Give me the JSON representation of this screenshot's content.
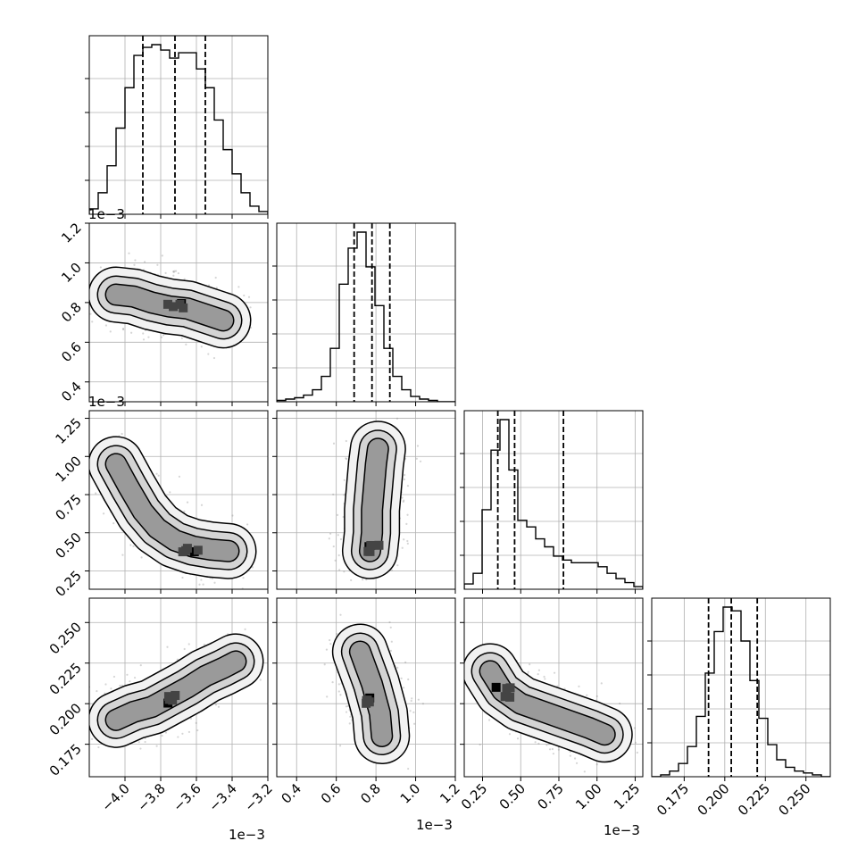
{
  "figure": {
    "offset_texts": [
      "1e−3",
      "1e−3",
      "1e−3",
      "1e−3",
      "1e−3"
    ]
  },
  "chart_data": {
    "type": "corner",
    "grid": true,
    "parameters": [
      {
        "range": [
          -0.0042,
          -0.0032
        ],
        "ticks": [
          -0.004,
          -0.0038,
          -0.0036,
          -0.0034,
          -0.0032
        ],
        "tick_labels": [
          "−4.0",
          "−3.8",
          "−3.6",
          "−3.4",
          "−3.2"
        ],
        "offset": "1e−3",
        "quantiles": [
          -0.0039,
          -0.00372,
          -0.00355
        ]
      },
      {
        "range": [
          0.0003,
          0.0012
        ],
        "ticks": [
          0.0004,
          0.0006,
          0.0008,
          0.001,
          0.0012
        ],
        "tick_labels": [
          "0.4",
          "0.6",
          "0.8",
          "1.0",
          "1.2"
        ],
        "offset": "1e−3",
        "quantiles": [
          0.00069,
          0.00078,
          0.00087
        ]
      },
      {
        "range": [
          0.00013,
          0.0013
        ],
        "ticks": [
          0.00025,
          0.0005,
          0.00075,
          0.001,
          0.00125
        ],
        "tick_labels": [
          "0.25",
          "0.50",
          "0.75",
          "1.00",
          "1.25"
        ],
        "offset": "1e−3",
        "quantiles": [
          0.00035,
          0.00046,
          0.00078
        ]
      },
      {
        "range": [
          0.155,
          0.265
        ],
        "ticks": [
          0.175,
          0.2,
          0.225,
          0.25
        ],
        "tick_labels": [
          "0.175",
          "0.200",
          "0.225",
          "0.250"
        ],
        "offset": "",
        "quantiles": [
          0.19,
          0.204,
          0.22
        ]
      }
    ],
    "histograms": [
      {
        "param": 0,
        "bins": 20,
        "counts": [
          2,
          8,
          18,
          32,
          47,
          59,
          62,
          63,
          61,
          58,
          60,
          60,
          54,
          47,
          35,
          24,
          15,
          8,
          3,
          1
        ]
      },
      {
        "param": 1,
        "bins": 20,
        "counts": [
          1,
          2,
          3,
          5,
          9,
          19,
          40,
          88,
          115,
          127,
          101,
          72,
          40,
          19,
          9,
          4,
          2,
          1,
          0,
          0
        ]
      },
      {
        "param": 2,
        "bins": 20,
        "counts": [
          4,
          12,
          60,
          105,
          128,
          90,
          52,
          47,
          38,
          32,
          25,
          22,
          20,
          20,
          20,
          17,
          12,
          8,
          5,
          2
        ]
      },
      {
        "param": 3,
        "bins": 20,
        "counts": [
          0,
          1,
          3,
          7,
          16,
          32,
          55,
          77,
          90,
          88,
          72,
          51,
          31,
          17,
          9,
          5,
          3,
          2,
          1,
          0
        ]
      }
    ],
    "density_panels": [
      {
        "x_param": 0,
        "y_param": 1,
        "ridge": [
          [
            -4.05,
            0.84
          ],
          [
            -3.95,
            0.83
          ],
          [
            -3.85,
            0.8
          ],
          [
            -3.75,
            0.78
          ],
          [
            -3.65,
            0.77
          ],
          [
            -3.55,
            0.74
          ],
          [
            -3.45,
            0.71
          ]
        ],
        "spread": [
          0.7,
          0.55,
          0.3
        ],
        "peak_center": [
          -3.72,
          0.78
        ]
      },
      {
        "x_param": 0,
        "y_param": 2,
        "ridge": [
          [
            -4.05,
            0.95
          ],
          [
            -3.98,
            0.8
          ],
          [
            -3.9,
            0.64
          ],
          [
            -3.82,
            0.53
          ],
          [
            -3.72,
            0.45
          ],
          [
            -3.62,
            0.41
          ],
          [
            -3.52,
            0.39
          ],
          [
            -3.42,
            0.38
          ]
        ],
        "spread": [
          1.0,
          0.9,
          0.9
        ],
        "peak_center": [
          -3.63,
          0.41
        ]
      },
      {
        "x_param": 0,
        "y_param": 3,
        "ridge": [
          [
            -4.05,
            0.19
          ],
          [
            -3.95,
            0.195
          ],
          [
            -3.85,
            0.198
          ],
          [
            -3.75,
            0.204
          ],
          [
            -3.65,
            0.21
          ],
          [
            -3.55,
            0.217
          ],
          [
            -3.45,
            0.222
          ],
          [
            -3.38,
            0.226
          ]
        ],
        "spread": [
          0.8,
          0.7,
          0.6
        ],
        "peak_center": [
          -3.76,
          0.202
        ]
      },
      {
        "x_param": 1,
        "y_param": 2,
        "ridge": [
          [
            0.77,
            0.38
          ],
          [
            0.78,
            0.5
          ],
          [
            0.78,
            0.65
          ],
          [
            0.79,
            0.8
          ],
          [
            0.8,
            0.95
          ],
          [
            0.81,
            1.05
          ]
        ],
        "spread": [
          0.6,
          0.9,
          1.3
        ],
        "peak_center": [
          0.78,
          0.41
        ]
      },
      {
        "x_param": 1,
        "y_param": 3,
        "ridge": [
          [
            0.72,
            0.232
          ],
          [
            0.75,
            0.222
          ],
          [
            0.78,
            0.212
          ],
          [
            0.8,
            0.203
          ],
          [
            0.82,
            0.194
          ],
          [
            0.83,
            0.18
          ]
        ],
        "spread": [
          0.5,
          0.9,
          1.1
        ],
        "peak_center": [
          0.8,
          0.202
        ]
      },
      {
        "x_param": 2,
        "y_param": 3,
        "ridge": [
          [
            0.3,
            0.22
          ],
          [
            0.38,
            0.208
          ],
          [
            0.5,
            0.2
          ],
          [
            0.65,
            0.195
          ],
          [
            0.8,
            0.19
          ],
          [
            0.95,
            0.185
          ],
          [
            1.05,
            0.181
          ]
        ],
        "spread": [
          0.7,
          0.9,
          0.9
        ],
        "peak_center": [
          0.4,
          0.207
        ]
      }
    ]
  }
}
